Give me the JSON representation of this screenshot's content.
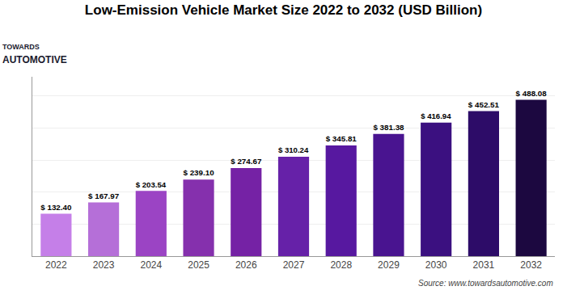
{
  "chart_data": {
    "type": "bar",
    "title": "Low-Emission Vehicle Market Size 2022 to 2032 (USD Billion)",
    "x": [
      2022,
      2023,
      2024,
      2025,
      2026,
      2027,
      2028,
      2029,
      2030,
      2031,
      2032
    ],
    "values": [
      132.4,
      167.97,
      203.54,
      239.1,
      274.67,
      310.24,
      345.81,
      381.38,
      416.94,
      452.51,
      488.08
    ],
    "value_labels": [
      "$ 132.40",
      "$ 167.97",
      "$ 203.54",
      "$ 239.10",
      "$ 274.67",
      "$ 310.24",
      "$ 345.81",
      "$ 381.38",
      "$ 416.94",
      "$ 452.51",
      "$ 488.08"
    ],
    "data_labels": true,
    "colors": [
      "#c57fe8",
      "#b56fd8",
      "#9b44c4",
      "#8530ad",
      "#7522a5",
      "#6621a8",
      "#5718a0",
      "#491490",
      "#3b1080",
      "#2d0c68",
      "#1c0840"
    ],
    "xlim": [
      2021.5,
      2032.5
    ],
    "xticks": [
      2022,
      2023,
      2024,
      2025,
      2026,
      2027,
      2028,
      2029,
      2030,
      2031,
      2032
    ],
    "ylim": [
      0,
      560
    ],
    "yticks": [
      0,
      100,
      200,
      300,
      400,
      500
    ],
    "grid": true,
    "tick_labels": "x",
    "annotations": [
      "TOWARDS",
      "AUTOMOTIVE",
      "Source: www.towardsautomotive.com"
    ]
  }
}
